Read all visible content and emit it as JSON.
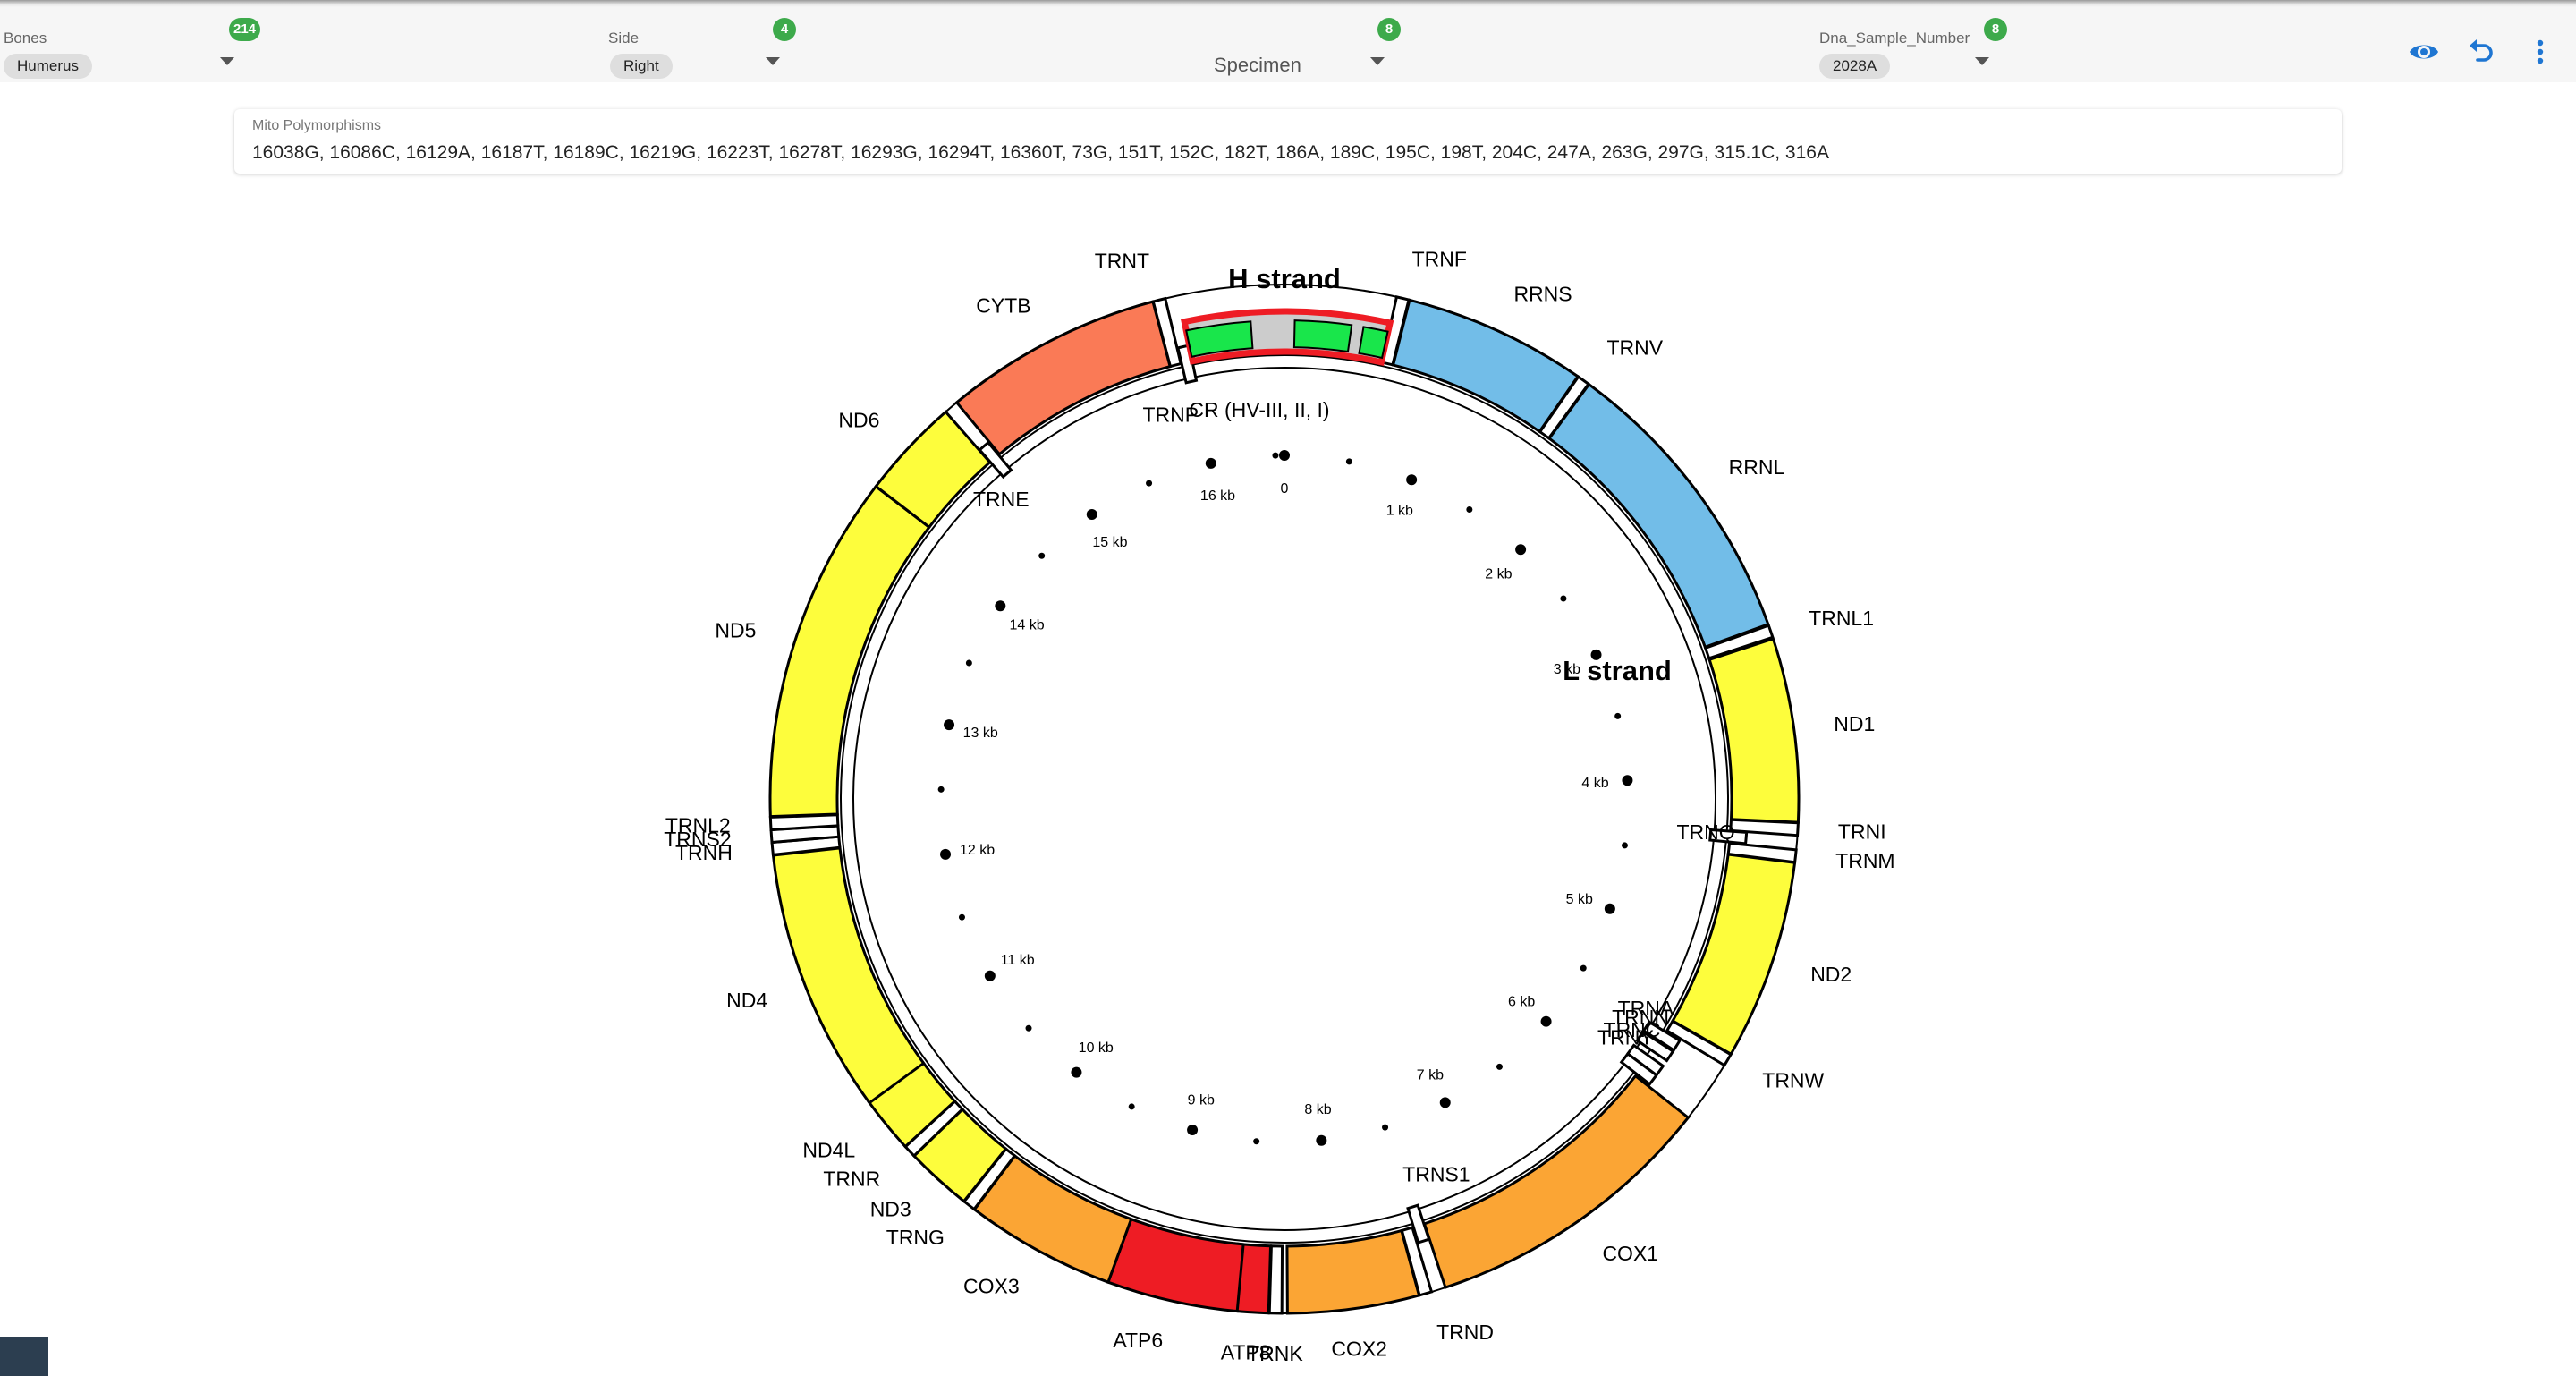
{
  "toolbar": {
    "filters": [
      {
        "label": "Bones",
        "value": "Humerus",
        "count": "214"
      },
      {
        "label": "Side",
        "value": "Right",
        "count": "4"
      },
      {
        "label": "",
        "placeholder": "Specimen",
        "count": "8"
      },
      {
        "label": "Dna_Sample_Number",
        "value": "2028A",
        "count": "8"
      }
    ],
    "icons": [
      "eye-icon",
      "undo-icon",
      "more-vert-icon"
    ],
    "accent": "#1f76d2",
    "badge_color": "#3daa4b"
  },
  "polymorphisms": {
    "label": "Mito Polymorphisms",
    "value": "16038G, 16086C, 16129A, 16187T, 16189C, 16219G, 16223T, 16278T, 16293G, 16294T, 16360T, 73G, 151T, 152C, 182T, 186A, 189C, 195C, 198T, 204C, 247A, 263G, 297G, 315.1C, 316A"
  },
  "mito_map": {
    "strand_labels": {
      "h": "H strand",
      "l": "L strand"
    },
    "control_region_label": "CR (HV-III, II, I)",
    "genome_length_bp": 16569,
    "colors": {
      "rRNA": "#72bde8",
      "complexI": "#fdfd3c",
      "cytb": "#fa7a56",
      "complexIV": "#fba534",
      "atp": "#ee1c24",
      "tRNA": "#ffffff",
      "cr": "#cccccc",
      "hvr": "#19e64b",
      "cr_outline": "#ee1c24"
    },
    "genes": [
      {
        "name": "TRNF",
        "start": 577,
        "end": 647,
        "type": "tRNA"
      },
      {
        "name": "RRNS",
        "start": 648,
        "end": 1601,
        "type": "rRNA"
      },
      {
        "name": "TRNV",
        "start": 1602,
        "end": 1670,
        "type": "tRNA"
      },
      {
        "name": "RRNL",
        "start": 1671,
        "end": 3229,
        "type": "rRNA"
      },
      {
        "name": "TRNL1",
        "start": 3230,
        "end": 3304,
        "type": "tRNA"
      },
      {
        "name": "ND1",
        "start": 3307,
        "end": 4262,
        "type": "complexI"
      },
      {
        "name": "TRNI",
        "start": 4263,
        "end": 4331,
        "type": "tRNA"
      },
      {
        "name": "TRNM",
        "start": 4402,
        "end": 4469,
        "type": "tRNA"
      },
      {
        "name": "ND2",
        "start": 4470,
        "end": 5511,
        "type": "complexI"
      },
      {
        "name": "TRNW",
        "start": 5512,
        "end": 5579,
        "type": "tRNA"
      },
      {
        "name": "COX1",
        "start": 5904,
        "end": 7445,
        "type": "complexIV"
      },
      {
        "name": "TRND",
        "start": 7518,
        "end": 7585,
        "type": "tRNA"
      },
      {
        "name": "COX2",
        "start": 7586,
        "end": 8269,
        "type": "complexIV"
      },
      {
        "name": "TRNK",
        "start": 8295,
        "end": 8364,
        "type": "tRNA"
      },
      {
        "name": "ATP8",
        "start": 8366,
        "end": 8572,
        "type": "atp"
      },
      {
        "name": "ATP6",
        "start": 8527,
        "end": 9207,
        "type": "atp"
      },
      {
        "name": "COX3",
        "start": 9207,
        "end": 9990,
        "type": "complexIV"
      },
      {
        "name": "TRNG",
        "start": 9991,
        "end": 10058,
        "type": "tRNA"
      },
      {
        "name": "ND3",
        "start": 10059,
        "end": 10404,
        "type": "complexI"
      },
      {
        "name": "TRNR",
        "start": 10405,
        "end": 10469,
        "type": "tRNA"
      },
      {
        "name": "ND4L",
        "start": 10470,
        "end": 10766,
        "type": "complexI"
      },
      {
        "name": "ND4",
        "start": 10760,
        "end": 12137,
        "type": "complexI"
      },
      {
        "name": "TRNH",
        "start": 12138,
        "end": 12206,
        "type": "tRNA"
      },
      {
        "name": "TRNS2",
        "start": 12207,
        "end": 12265,
        "type": "tRNA"
      },
      {
        "name": "TRNL2",
        "start": 12266,
        "end": 12336,
        "type": "tRNA"
      },
      {
        "name": "ND5",
        "start": 12337,
        "end": 14148,
        "type": "complexI"
      },
      {
        "name": "ND6",
        "start": 14149,
        "end": 14673,
        "type": "complexI"
      },
      {
        "name": "TRNE",
        "start": 14674,
        "end": 14742,
        "type": "tRNA"
      },
      {
        "name": "CYTB",
        "start": 14747,
        "end": 15887,
        "type": "cytb"
      },
      {
        "name": "TRNT",
        "start": 15888,
        "end": 15953,
        "type": "tRNA"
      },
      {
        "name": "TRNP",
        "start": 15956,
        "end": 16023,
        "type": "tRNA"
      },
      {
        "name": "TRNQ",
        "start": 4329,
        "end": 4400,
        "type": "tRNA"
      },
      {
        "name": "TRNA",
        "start": 5587,
        "end": 5655,
        "type": "tRNA"
      },
      {
        "name": "TRNN",
        "start": 5657,
        "end": 5729,
        "type": "tRNA"
      },
      {
        "name": "TRNC",
        "start": 5761,
        "end": 5826,
        "type": "tRNA"
      },
      {
        "name": "TRNY",
        "start": 5826,
        "end": 5891,
        "type": "tRNA"
      },
      {
        "name": "TRNS1",
        "start": 7446,
        "end": 7514,
        "type": "tRNA"
      }
    ],
    "hypervariable_regions": [
      {
        "start": 438,
        "end": 574
      },
      {
        "start": 57,
        "end": 372
      },
      {
        "start": 16024,
        "end": 16383
      }
    ],
    "kb_ticks": [
      {
        "kb": 0,
        "label": "0"
      },
      {
        "kb": 1,
        "label": "1 kb"
      },
      {
        "kb": 2,
        "label": "2 kb"
      },
      {
        "kb": 3,
        "label": "3 kb"
      },
      {
        "kb": 4,
        "label": "4 kb"
      },
      {
        "kb": 5,
        "label": "5 kb"
      },
      {
        "kb": 6,
        "label": "6 kb"
      },
      {
        "kb": 7,
        "label": "7 kb"
      },
      {
        "kb": 8,
        "label": "8 kb"
      },
      {
        "kb": 9,
        "label": "9 kb"
      },
      {
        "kb": 10,
        "label": "10 kb"
      },
      {
        "kb": 11,
        "label": "11 kb"
      },
      {
        "kb": 12,
        "label": "12 kb"
      },
      {
        "kb": 13,
        "label": "13 kb"
      },
      {
        "kb": 14,
        "label": "14 kb"
      },
      {
        "kb": 15,
        "label": "15 kb"
      },
      {
        "kb": 16,
        "label": "16 kb"
      }
    ]
  }
}
